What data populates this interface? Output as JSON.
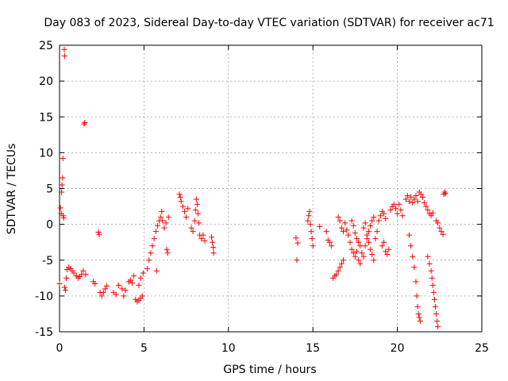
{
  "chart_data": {
    "type": "scatter",
    "title": "Day 083 of 2023, Sidereal Day-to-day VTEC variation (SDTVAR) for receiver ac71",
    "xlabel": "GPS time / hours",
    "ylabel": "SDTVAR / TECUs",
    "xlim": [
      0,
      25
    ],
    "ylim": [
      -15,
      25
    ],
    "x_ticks": [
      0,
      5,
      10,
      15,
      20,
      25
    ],
    "y_ticks": [
      -15,
      -10,
      -5,
      0,
      5,
      10,
      15,
      20,
      25
    ],
    "grid": true,
    "marker": "plus",
    "series": [
      {
        "name": "SDTVAR",
        "color": "#ff0000",
        "points": [
          [
            0.0,
            -8.3
          ],
          [
            0.05,
            2.3
          ],
          [
            0.1,
            1.5
          ],
          [
            0.12,
            4.5
          ],
          [
            0.15,
            5.5
          ],
          [
            0.18,
            6.5
          ],
          [
            0.2,
            9.2
          ],
          [
            0.22,
            1.2
          ],
          [
            0.25,
            0.9
          ],
          [
            0.28,
            24.4
          ],
          [
            0.3,
            23.5
          ],
          [
            0.3,
            -8.8
          ],
          [
            0.35,
            -9.2
          ],
          [
            0.4,
            -7.5
          ],
          [
            0.45,
            -6.3
          ],
          [
            0.55,
            -6.0
          ],
          [
            0.65,
            -6.2
          ],
          [
            0.75,
            -6.5
          ],
          [
            0.85,
            -6.8
          ],
          [
            1.0,
            -7.2
          ],
          [
            1.1,
            -7.5
          ],
          [
            1.2,
            -7.3
          ],
          [
            1.3,
            -7.0
          ],
          [
            1.4,
            -6.5
          ],
          [
            1.45,
            14.0
          ],
          [
            1.5,
            14.2
          ],
          [
            1.55,
            -7.0
          ],
          [
            2.0,
            -8.0
          ],
          [
            2.1,
            -8.3
          ],
          [
            2.3,
            -1.1
          ],
          [
            2.35,
            -1.4
          ],
          [
            2.4,
            -9.5
          ],
          [
            2.5,
            -10.0
          ],
          [
            2.6,
            -9.5
          ],
          [
            2.7,
            -9.0
          ],
          [
            2.8,
            -8.6
          ],
          [
            3.2,
            -9.5
          ],
          [
            3.35,
            -9.8
          ],
          [
            3.5,
            -8.5
          ],
          [
            3.7,
            -9.0
          ],
          [
            3.8,
            -10.0
          ],
          [
            3.9,
            -9.2
          ],
          [
            4.1,
            -8.0
          ],
          [
            4.2,
            -7.8
          ],
          [
            4.3,
            -8.2
          ],
          [
            4.4,
            -7.2
          ],
          [
            4.5,
            -10.5
          ],
          [
            4.6,
            -10.8
          ],
          [
            4.7,
            -10.6
          ],
          [
            4.8,
            -10.3
          ],
          [
            4.9,
            -10.0
          ],
          [
            4.8,
            -7.5
          ],
          [
            4.7,
            -8.5
          ],
          [
            4.95,
            -6.8
          ],
          [
            5.2,
            -6.2
          ],
          [
            5.3,
            -5.0
          ],
          [
            5.4,
            -4.0
          ],
          [
            5.5,
            -3.0
          ],
          [
            5.6,
            -2.0
          ],
          [
            5.7,
            -1.0
          ],
          [
            5.75,
            -6.5
          ],
          [
            5.8,
            -0.2
          ],
          [
            5.9,
            0.5
          ],
          [
            6.0,
            1.0
          ],
          [
            6.05,
            1.8
          ],
          [
            6.1,
            0.5
          ],
          [
            6.2,
            -0.5
          ],
          [
            6.3,
            0.2
          ],
          [
            6.35,
            -3.5
          ],
          [
            6.4,
            -4.0
          ],
          [
            6.45,
            1.0
          ],
          [
            7.1,
            4.2
          ],
          [
            7.15,
            3.8
          ],
          [
            7.2,
            3.2
          ],
          [
            7.3,
            2.5
          ],
          [
            7.4,
            1.8
          ],
          [
            7.5,
            1.0
          ],
          [
            7.6,
            2.2
          ],
          [
            7.8,
            -0.5
          ],
          [
            7.9,
            -1.0
          ],
          [
            8.0,
            0.5
          ],
          [
            8.05,
            2.0
          ],
          [
            8.1,
            3.5
          ],
          [
            8.15,
            2.8
          ],
          [
            8.2,
            1.5
          ],
          [
            8.25,
            0.2
          ],
          [
            8.3,
            -1.5
          ],
          [
            8.4,
            -2.0
          ],
          [
            8.5,
            -1.5
          ],
          [
            8.6,
            -2.3
          ],
          [
            9.0,
            -1.8
          ],
          [
            9.05,
            -2.5
          ],
          [
            9.1,
            -3.2
          ],
          [
            9.12,
            -4.0
          ],
          [
            14.0,
            -1.9
          ],
          [
            14.05,
            -5.0
          ],
          [
            14.1,
            -2.6
          ],
          [
            14.7,
            0.5
          ],
          [
            14.75,
            1.2
          ],
          [
            14.8,
            1.8
          ],
          [
            14.85,
            0.0
          ],
          [
            14.9,
            -1.0
          ],
          [
            14.95,
            -2.0
          ],
          [
            15.0,
            -3.0
          ],
          [
            15.4,
            -0.3
          ],
          [
            15.8,
            -1.0
          ],
          [
            15.9,
            -2.2
          ],
          [
            16.0,
            -2.5
          ],
          [
            16.1,
            -3.0
          ],
          [
            16.2,
            -7.5
          ],
          [
            16.3,
            -7.2
          ],
          [
            16.4,
            -7.0
          ],
          [
            16.5,
            -6.5
          ],
          [
            16.6,
            -6.0
          ],
          [
            16.7,
            -5.5
          ],
          [
            16.8,
            -5.0
          ],
          [
            16.5,
            1.0
          ],
          [
            16.6,
            0.5
          ],
          [
            16.7,
            -0.5
          ],
          [
            16.8,
            -1.0
          ],
          [
            16.9,
            0.2
          ],
          [
            17.0,
            -0.8
          ],
          [
            17.1,
            -1.5
          ],
          [
            17.2,
            -2.5
          ],
          [
            17.3,
            -3.5
          ],
          [
            17.4,
            -4.0
          ],
          [
            17.5,
            -4.5
          ],
          [
            17.6,
            -3.8
          ],
          [
            17.7,
            -5.0
          ],
          [
            17.8,
            -5.5
          ],
          [
            17.3,
            0.5
          ],
          [
            17.4,
            -0.2
          ],
          [
            17.5,
            -1.2
          ],
          [
            17.6,
            -2.0
          ],
          [
            17.7,
            -2.5
          ],
          [
            17.8,
            -3.0
          ],
          [
            17.9,
            -4.0
          ],
          [
            18.0,
            -4.5
          ],
          [
            18.1,
            -3.0
          ],
          [
            18.2,
            -2.0
          ],
          [
            18.3,
            -1.0
          ],
          [
            18.4,
            -0.2
          ],
          [
            18.5,
            0.5
          ],
          [
            18.6,
            1.0
          ],
          [
            18.0,
            -0.5
          ],
          [
            18.1,
            0.2
          ],
          [
            18.2,
            -1.5
          ],
          [
            18.3,
            -2.5
          ],
          [
            18.4,
            -3.5
          ],
          [
            18.5,
            -4.2
          ],
          [
            18.6,
            -5.0
          ],
          [
            18.7,
            -2.0
          ],
          [
            18.8,
            -1.0
          ],
          [
            18.9,
            0.5
          ],
          [
            19.0,
            1.2
          ],
          [
            19.1,
            1.8
          ],
          [
            19.2,
            1.5
          ],
          [
            19.3,
            0.8
          ],
          [
            19.1,
            -3.0
          ],
          [
            19.2,
            -2.5
          ],
          [
            19.3,
            -3.8
          ],
          [
            19.4,
            -4.2
          ],
          [
            19.5,
            -3.5
          ],
          [
            19.6,
            2.0
          ],
          [
            19.7,
            2.5
          ],
          [
            19.8,
            2.8
          ],
          [
            19.9,
            2.2
          ],
          [
            20.0,
            1.5
          ],
          [
            20.1,
            2.8
          ],
          [
            20.2,
            2.0
          ],
          [
            20.3,
            1.2
          ],
          [
            20.5,
            3.5
          ],
          [
            20.6,
            4.0
          ],
          [
            20.7,
            3.2
          ],
          [
            20.8,
            3.8
          ],
          [
            20.9,
            3.0
          ],
          [
            21.0,
            3.5
          ],
          [
            21.1,
            4.0
          ],
          [
            21.2,
            3.2
          ],
          [
            21.3,
            4.5
          ],
          [
            20.7,
            -1.5
          ],
          [
            20.8,
            -3.0
          ],
          [
            20.9,
            -4.5
          ],
          [
            21.0,
            -6.0
          ],
          [
            21.1,
            -8.0
          ],
          [
            21.15,
            -10.0
          ],
          [
            21.2,
            -11.5
          ],
          [
            21.25,
            -12.5
          ],
          [
            21.3,
            -13.0
          ],
          [
            21.35,
            -13.5
          ],
          [
            21.4,
            4.2
          ],
          [
            21.5,
            3.8
          ],
          [
            21.6,
            3.0
          ],
          [
            21.7,
            2.5
          ],
          [
            21.8,
            2.0
          ],
          [
            21.9,
            1.5
          ],
          [
            22.0,
            1.2
          ],
          [
            22.1,
            1.6
          ],
          [
            21.8,
            -4.5
          ],
          [
            21.9,
            -5.5
          ],
          [
            22.0,
            -6.5
          ],
          [
            22.05,
            -7.5
          ],
          [
            22.1,
            -8.5
          ],
          [
            22.15,
            -9.5
          ],
          [
            22.2,
            -10.5
          ],
          [
            22.25,
            -11.5
          ],
          [
            22.3,
            -12.5
          ],
          [
            22.35,
            -13.5
          ],
          [
            22.4,
            -14.3
          ],
          [
            22.3,
            0.5
          ],
          [
            22.4,
            0.2
          ],
          [
            22.5,
            -0.5
          ],
          [
            22.6,
            -1.0
          ],
          [
            22.7,
            -1.4
          ],
          [
            22.75,
            4.2
          ],
          [
            22.8,
            4.5
          ],
          [
            22.85,
            4.3
          ]
        ]
      }
    ]
  }
}
